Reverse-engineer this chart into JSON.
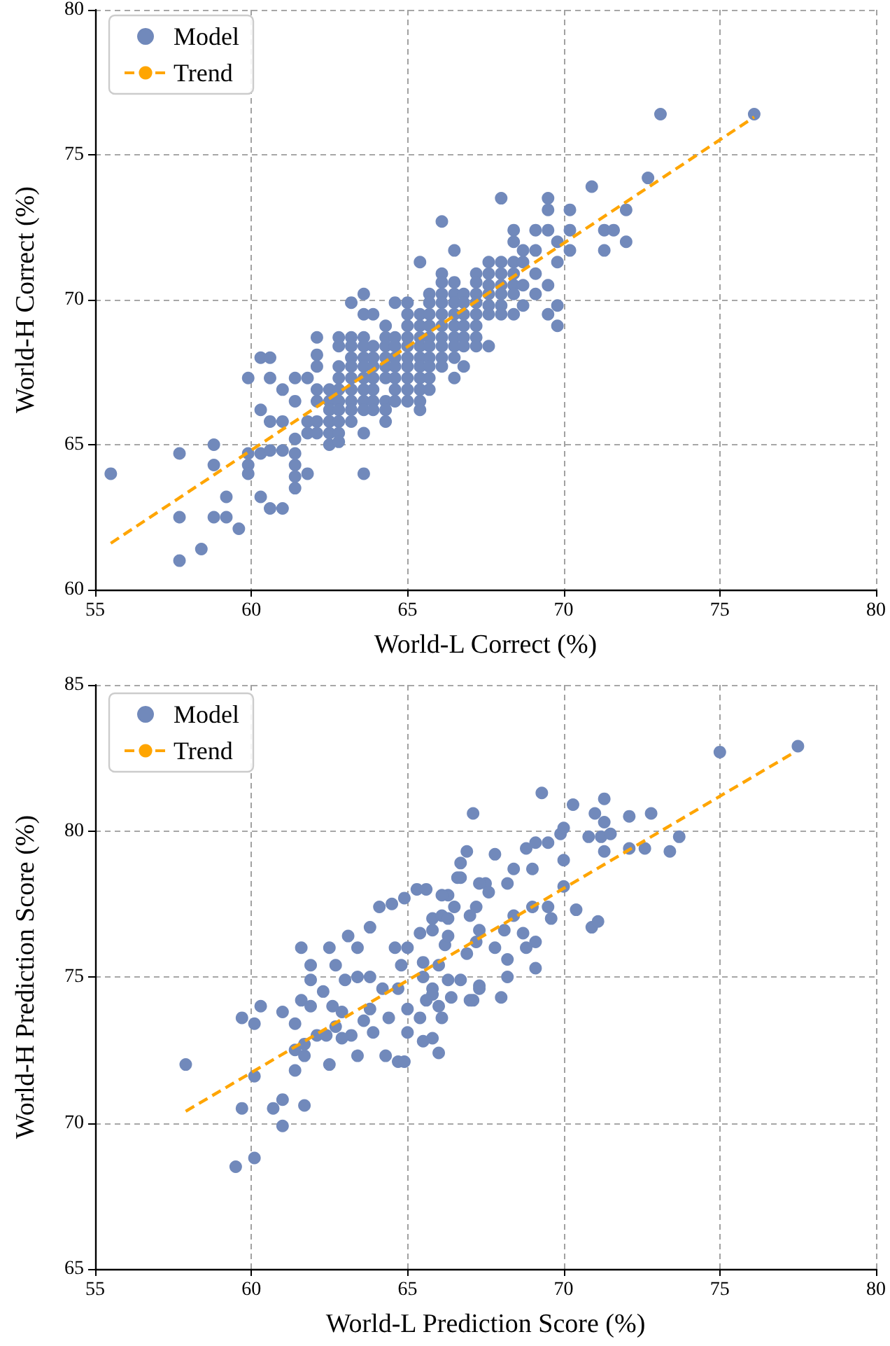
{
  "chart_data": [
    {
      "type": "scatter",
      "xlabel": "World-L Correct (%)",
      "ylabel": "World-H Correct (%)",
      "xlim": [
        55,
        80
      ],
      "ylim": [
        60,
        80
      ],
      "xticks": [
        55,
        60,
        65,
        70,
        75,
        80
      ],
      "yticks": [
        60,
        65,
        70,
        75,
        80
      ],
      "grid": true,
      "legend": "top left",
      "series": [
        {
          "name": "Model",
          "color": "#7189bb",
          "marker": "circle",
          "x": [
            55.5,
            57.7,
            57.7,
            57.7,
            58.4,
            58.8,
            58.8,
            59.2,
            58.8,
            59.2,
            59.6,
            59.9,
            60.3,
            60.6,
            59.9,
            59.9,
            59.9,
            60.3,
            60.3,
            60.3,
            60.6,
            61.0,
            60.6,
            61.0,
            60.6,
            61.0,
            60.6,
            61.0,
            61.4,
            61.8,
            61.4,
            61.4,
            61.4,
            61.4,
            61.4,
            61.4,
            61.8,
            61.8,
            61.8,
            62.1,
            62.1,
            62.1,
            62.1,
            62.1,
            62.1,
            62.1,
            62.5,
            62.5,
            62.5,
            62.5,
            62.5,
            62.5,
            62.8,
            62.8,
            62.8,
            62.8,
            62.8,
            62.8,
            62.8,
            62.8,
            62.8,
            62.8,
            63.2,
            63.2,
            63.2,
            63.2,
            63.2,
            63.2,
            63.2,
            63.2,
            63.2,
            63.2,
            63.6,
            63.6,
            63.6,
            63.6,
            63.6,
            63.6,
            63.6,
            63.6,
            63.6,
            63.6,
            63.6,
            63.6,
            63.9,
            63.9,
            63.9,
            63.9,
            63.9,
            63.9,
            63.9,
            63.9,
            64.3,
            64.3,
            64.3,
            64.3,
            64.3,
            64.3,
            64.3,
            64.3,
            64.3,
            64.6,
            64.6,
            64.6,
            64.6,
            64.6,
            64.6,
            64.6,
            64.6,
            65.0,
            65.0,
            65.0,
            65.0,
            65.0,
            65.0,
            65.0,
            65.0,
            65.0,
            65.0,
            65.4,
            65.4,
            65.4,
            65.4,
            65.4,
            65.4,
            65.4,
            65.4,
            65.4,
            65.4,
            65.4,
            65.7,
            65.7,
            65.7,
            65.7,
            65.7,
            65.7,
            65.7,
            65.7,
            65.7,
            65.7,
            66.1,
            66.1,
            66.1,
            66.1,
            66.1,
            66.1,
            66.1,
            66.1,
            66.1,
            66.1,
            66.1,
            66.5,
            66.5,
            66.5,
            66.5,
            66.5,
            66.5,
            66.5,
            66.5,
            66.5,
            66.5,
            66.8,
            66.8,
            66.8,
            66.8,
            66.8,
            66.8,
            66.8,
            67.2,
            67.2,
            67.2,
            67.2,
            67.2,
            67.2,
            67.2,
            67.2,
            67.6,
            67.6,
            67.6,
            67.6,
            67.6,
            67.6,
            67.6,
            68.0,
            68.0,
            68.0,
            68.0,
            68.0,
            68.0,
            68.0,
            68.4,
            68.4,
            68.4,
            68.4,
            68.4,
            68.4,
            68.4,
            68.7,
            68.7,
            68.7,
            68.7,
            69.1,
            69.1,
            69.1,
            69.1,
            69.5,
            69.5,
            69.5,
            69.5,
            69.5,
            69.8,
            69.8,
            69.8,
            69.8,
            70.2,
            70.2,
            70.2,
            70.9,
            71.3,
            71.3,
            71.6,
            72.0,
            72.0,
            72.7,
            73.1,
            76.1
          ],
          "values": [
            64.0,
            64.7,
            62.5,
            61.0,
            61.4,
            65.0,
            64.3,
            63.2,
            62.5,
            62.5,
            62.1,
            67.3,
            68.0,
            68.0,
            64.7,
            64.3,
            64.0,
            64.7,
            66.2,
            63.2,
            62.8,
            62.8,
            67.3,
            66.9,
            65.8,
            65.8,
            64.8,
            64.8,
            67.3,
            67.3,
            66.5,
            65.2,
            64.7,
            64.3,
            63.9,
            63.5,
            64.0,
            65.8,
            65.4,
            68.7,
            68.1,
            67.7,
            66.9,
            66.5,
            65.8,
            65.4,
            66.9,
            66.5,
            66.2,
            65.8,
            65.4,
            65.0,
            68.7,
            68.4,
            67.7,
            67.3,
            66.9,
            66.5,
            66.2,
            65.8,
            65.4,
            65.1,
            69.9,
            68.7,
            68.4,
            68.0,
            67.7,
            67.3,
            66.9,
            66.5,
            66.2,
            65.8,
            70.2,
            69.5,
            68.7,
            68.4,
            68.0,
            67.7,
            67.3,
            66.9,
            66.5,
            66.2,
            65.4,
            64.0,
            69.5,
            68.4,
            68.0,
            67.7,
            67.3,
            66.9,
            66.5,
            66.2,
            69.1,
            68.7,
            68.4,
            68.0,
            67.7,
            67.3,
            66.5,
            66.2,
            65.8,
            69.9,
            68.7,
            68.4,
            68.0,
            67.7,
            67.3,
            66.9,
            66.5,
            69.9,
            69.5,
            69.1,
            68.7,
            68.4,
            68.0,
            67.7,
            67.3,
            66.9,
            66.5,
            71.3,
            69.5,
            69.1,
            68.7,
            68.4,
            68.0,
            67.7,
            67.3,
            66.9,
            66.5,
            66.2,
            70.2,
            69.9,
            69.5,
            69.1,
            68.7,
            68.4,
            68.0,
            67.7,
            67.3,
            66.9,
            72.7,
            70.9,
            70.6,
            70.2,
            69.9,
            69.5,
            69.1,
            68.7,
            68.4,
            68.0,
            67.7,
            71.7,
            70.6,
            70.2,
            69.9,
            69.5,
            69.1,
            68.7,
            68.4,
            68.0,
            67.3,
            70.2,
            69.9,
            69.5,
            69.1,
            68.7,
            68.4,
            67.7,
            70.9,
            70.6,
            70.2,
            69.9,
            69.5,
            69.1,
            68.7,
            68.4,
            71.3,
            70.9,
            70.5,
            70.2,
            69.8,
            69.5,
            68.4,
            73.5,
            71.3,
            70.9,
            70.5,
            70.2,
            69.8,
            69.5,
            72.4,
            72.0,
            71.3,
            70.9,
            70.5,
            70.2,
            69.5,
            71.7,
            71.3,
            70.5,
            69.8,
            72.4,
            71.7,
            70.9,
            70.2,
            73.5,
            73.1,
            72.4,
            70.5,
            69.5,
            72.0,
            71.3,
            69.8,
            69.1,
            73.1,
            72.4,
            71.7,
            73.9,
            72.4,
            71.7,
            72.4,
            73.1,
            72.0,
            74.2,
            76.4,
            76.4
          ]
        },
        {
          "name": "Trend",
          "type": "line",
          "color": "#ffa500",
          "marker": "none",
          "line_style": "dashed",
          "x": [
            55.5,
            76.1
          ],
          "values": [
            61.6,
            76.3
          ]
        }
      ]
    },
    {
      "type": "scatter",
      "xlabel": "World-L Prediction Score (%)",
      "ylabel": "World-H Prediction Score (%)",
      "xlim": [
        55,
        80
      ],
      "ylim": [
        65,
        85
      ],
      "xticks": [
        55,
        60,
        65,
        70,
        75,
        80
      ],
      "yticks": [
        65,
        70,
        75,
        80,
        85
      ],
      "grid": true,
      "legend": "top left",
      "series": [
        {
          "name": "Model",
          "color": "#7189bb",
          "marker": "circle",
          "x": [
            57.9,
            59.5,
            60.1,
            59.7,
            60.1,
            59.7,
            60.1,
            60.3,
            60.7,
            61.0,
            61.0,
            61.0,
            61.4,
            61.4,
            61.4,
            61.7,
            61.7,
            61.7,
            61.6,
            61.6,
            61.9,
            61.9,
            61.9,
            62.1,
            62.5,
            62.5,
            62.7,
            63.4,
            64.3,
            64.7,
            64.9,
            65.8,
            67.1,
            63.1,
            63.4,
            63.8,
            64.1,
            64.5,
            64.9,
            65.3,
            65.6,
            63.0,
            63.4,
            63.8,
            63.8,
            63.6,
            62.9,
            63.2,
            63.9,
            64.4,
            64.2,
            64.7,
            64.8,
            64.6,
            65.0,
            65.0,
            65.0,
            65.4,
            66.0,
            66.1,
            65.8,
            65.5,
            66.0,
            65.4,
            65.8,
            66.3,
            66.4,
            66.7,
            66.9,
            66.2,
            66.1,
            66.3,
            66.7,
            66.9,
            66.7,
            67.1,
            67.3,
            67.2,
            67.2,
            67.5,
            65.8,
            66.3,
            66.1,
            66.6,
            66.5,
            67.0,
            67.3,
            67.8,
            67.6,
            68.2,
            68.4,
            68.8,
            69.1,
            69.5,
            69.9,
            70.0,
            69.3,
            70.3,
            71.0,
            71.3,
            71.3,
            70.8,
            71.2,
            71.5,
            71.3,
            72.1,
            72.1,
            72.6,
            72.8,
            73.4,
            73.7,
            75.0,
            77.5,
            70.4,
            70.9,
            71.1,
            70.0,
            69.6,
            69.5,
            70.0,
            69.0,
            69.0,
            68.7,
            69.1,
            69.1,
            68.4,
            68.1,
            67.8,
            68.2,
            68.8,
            67.3,
            68.0,
            68.2,
            67.0,
            65.8,
            66.3,
            67.3,
            62.3,
            62.6,
            62.7,
            62.9,
            62.4,
            65.5,
            65.6,
            65.5,
            66.0
          ],
          "values": [
            72.0,
            68.5,
            68.8,
            70.5,
            71.6,
            73.6,
            73.4,
            74.0,
            70.5,
            69.9,
            70.8,
            73.8,
            73.4,
            72.5,
            71.8,
            72.7,
            72.3,
            70.6,
            74.2,
            76.0,
            75.4,
            74.9,
            74.0,
            73.0,
            76.0,
            72.0,
            75.4,
            72.3,
            72.3,
            72.1,
            72.1,
            72.9,
            80.6,
            76.4,
            76.0,
            76.7,
            77.4,
            77.5,
            77.7,
            78.0,
            78.0,
            74.9,
            75.0,
            75.0,
            73.9,
            73.5,
            73.8,
            73.0,
            73.1,
            73.6,
            74.6,
            74.6,
            75.4,
            76.0,
            76.0,
            73.9,
            73.1,
            73.6,
            74.0,
            73.6,
            74.6,
            75.5,
            75.4,
            76.5,
            77.0,
            74.9,
            74.3,
            74.9,
            75.8,
            76.1,
            77.1,
            77.8,
            78.4,
            79.3,
            78.9,
            74.2,
            74.7,
            76.2,
            77.4,
            78.2,
            76.6,
            77.0,
            77.8,
            78.4,
            77.4,
            77.1,
            78.2,
            79.2,
            77.9,
            78.2,
            78.7,
            79.4,
            79.6,
            79.6,
            79.9,
            80.1,
            81.3,
            80.9,
            80.6,
            81.1,
            80.3,
            79.8,
            79.8,
            79.9,
            79.3,
            80.5,
            79.4,
            79.4,
            80.6,
            79.3,
            79.8,
            82.7,
            82.9,
            77.3,
            76.7,
            76.9,
            78.1,
            77.0,
            77.4,
            79.0,
            78.7,
            77.4,
            76.5,
            76.2,
            75.3,
            77.1,
            76.6,
            76.0,
            75.6,
            76.0,
            74.6,
            74.3,
            75.0,
            74.2,
            74.4,
            76.4,
            76.6,
            74.5,
            74.0,
            73.3,
            72.9,
            73.0,
            75.0,
            74.2,
            72.8,
            72.4
          ]
        },
        {
          "name": "Trend",
          "type": "line",
          "color": "#ffa500",
          "marker": "none",
          "line_style": "dashed",
          "x": [
            57.9,
            77.4
          ],
          "values": [
            70.4,
            82.7
          ]
        }
      ]
    }
  ]
}
